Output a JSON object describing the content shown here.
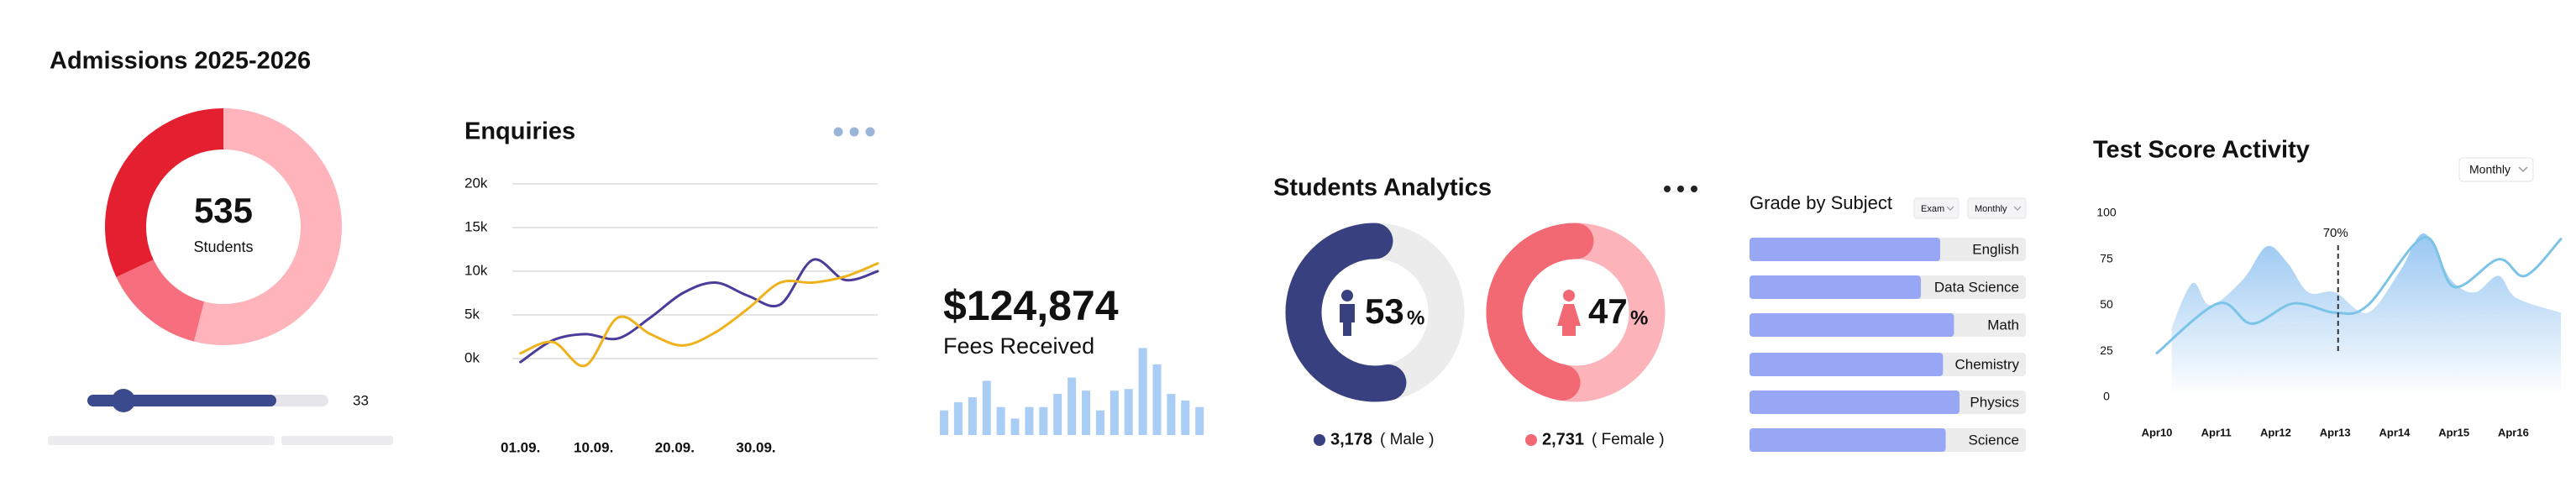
{
  "chart_data": [
    {
      "type": "donut",
      "title": "Admissions 2025-2026",
      "center_value": 535,
      "center_label": "Students",
      "values": [
        54,
        14,
        32
      ],
      "colors": [
        "#ffb3ba",
        "#f76f7e",
        "#e41f2f"
      ],
      "slider_value": 33
    },
    {
      "type": "line",
      "title": "Enquiries",
      "x": [
        1,
        5,
        9,
        13,
        17,
        21,
        25,
        29,
        33,
        37,
        41,
        45
      ],
      "xlim": [
        0,
        45
      ],
      "xticks": [
        {
          "value": 1,
          "label": "01.09."
        },
        {
          "value": 10,
          "label": "10.09."
        },
        {
          "value": 20,
          "label": "20.09."
        },
        {
          "value": 30,
          "label": "30.09."
        }
      ],
      "ylim": [
        -7500,
        20000
      ],
      "yticks": [
        {
          "value": 0,
          "label": "0k"
        },
        {
          "value": 5000,
          "label": "5k"
        },
        {
          "value": 10000,
          "label": "10k"
        },
        {
          "value": 15000,
          "label": "15k"
        },
        {
          "value": 20000,
          "label": "20k"
        }
      ],
      "grid": true,
      "series": [
        {
          "color": "#4b3b9a",
          "values": [
            -400,
            2100,
            2800,
            2300,
            4700,
            7500,
            8700,
            7200,
            6200,
            11300,
            9000,
            10000
          ]
        },
        {
          "color": "#f0b21c",
          "values": [
            600,
            1900,
            -800,
            4700,
            2800,
            1500,
            3000,
            5700,
            8700,
            8700,
            9400,
            10900
          ]
        }
      ]
    },
    {
      "type": "bar",
      "title": "$124,874",
      "subtitle": "Fees Received",
      "color": "#a9cdf5",
      "values": [
        15,
        20,
        23,
        33,
        17,
        10,
        17,
        17,
        25,
        35,
        27,
        15,
        27,
        28,
        53,
        43,
        25,
        21,
        17
      ]
    },
    {
      "type": "rings",
      "title": "Students Analytics",
      "groups": [
        {
          "percent": 53,
          "percent_sign": "%",
          "count": "3,178",
          "label": "( Male )",
          "color": "#39407f",
          "track_color": "#ececec"
        },
        {
          "percent": 47,
          "percent_sign": "%",
          "count": "2,731",
          "label": "( Female )",
          "color": "#f26873",
          "track_color": "#fcb3ba"
        }
      ]
    },
    {
      "type": "hbar",
      "title": "Grade by Subject",
      "filters": [
        "Exam",
        "Monthly"
      ],
      "color": "#97a7f5",
      "xlim": [
        0,
        100
      ],
      "categories": [
        "English",
        "Data Science",
        "Math",
        "Chemistry",
        "Physics",
        "Science"
      ],
      "values": [
        69,
        62,
        74,
        70,
        76,
        71
      ]
    },
    {
      "type": "line",
      "title": "Test Score Activity",
      "filter": "Monthly",
      "xlim": [
        10,
        16.8
      ],
      "xticks": [
        {
          "value": 10,
          "label": "Apr10"
        },
        {
          "value": 11,
          "label": "Apr11"
        },
        {
          "value": 12,
          "label": "Apr12"
        },
        {
          "value": 13,
          "label": "Apr13"
        },
        {
          "value": 14,
          "label": "Apr14"
        },
        {
          "value": 15,
          "label": "Apr15"
        },
        {
          "value": 16,
          "label": "Apr16"
        }
      ],
      "ylim": [
        0,
        100
      ],
      "yticks": [
        0,
        25,
        50,
        75,
        100
      ],
      "grid": false,
      "series": [
        {
          "area": true,
          "color": "#8cc0f0",
          "x": [
            10.25,
            10.6,
            10.9,
            11.45,
            11.85,
            12.2,
            12.55,
            13,
            13.55,
            14.1,
            14.5,
            14.95,
            15.35,
            15.75,
            16.05,
            16.8
          ],
          "values": [
            38,
            62,
            50,
            64,
            82,
            73,
            57,
            57,
            46,
            69,
            89,
            64,
            57,
            66,
            54,
            46
          ]
        },
        {
          "color": "#7cc3e8",
          "x": [
            10,
            11.03,
            11.6,
            12.3,
            13,
            13.55,
            14.5,
            15,
            15.75,
            16.2,
            16.8
          ],
          "values": [
            24,
            51,
            40,
            51,
            46,
            50,
            87,
            60,
            75,
            66,
            86
          ]
        }
      ],
      "annotation": {
        "label": "70%",
        "x": 13.05
      }
    }
  ]
}
